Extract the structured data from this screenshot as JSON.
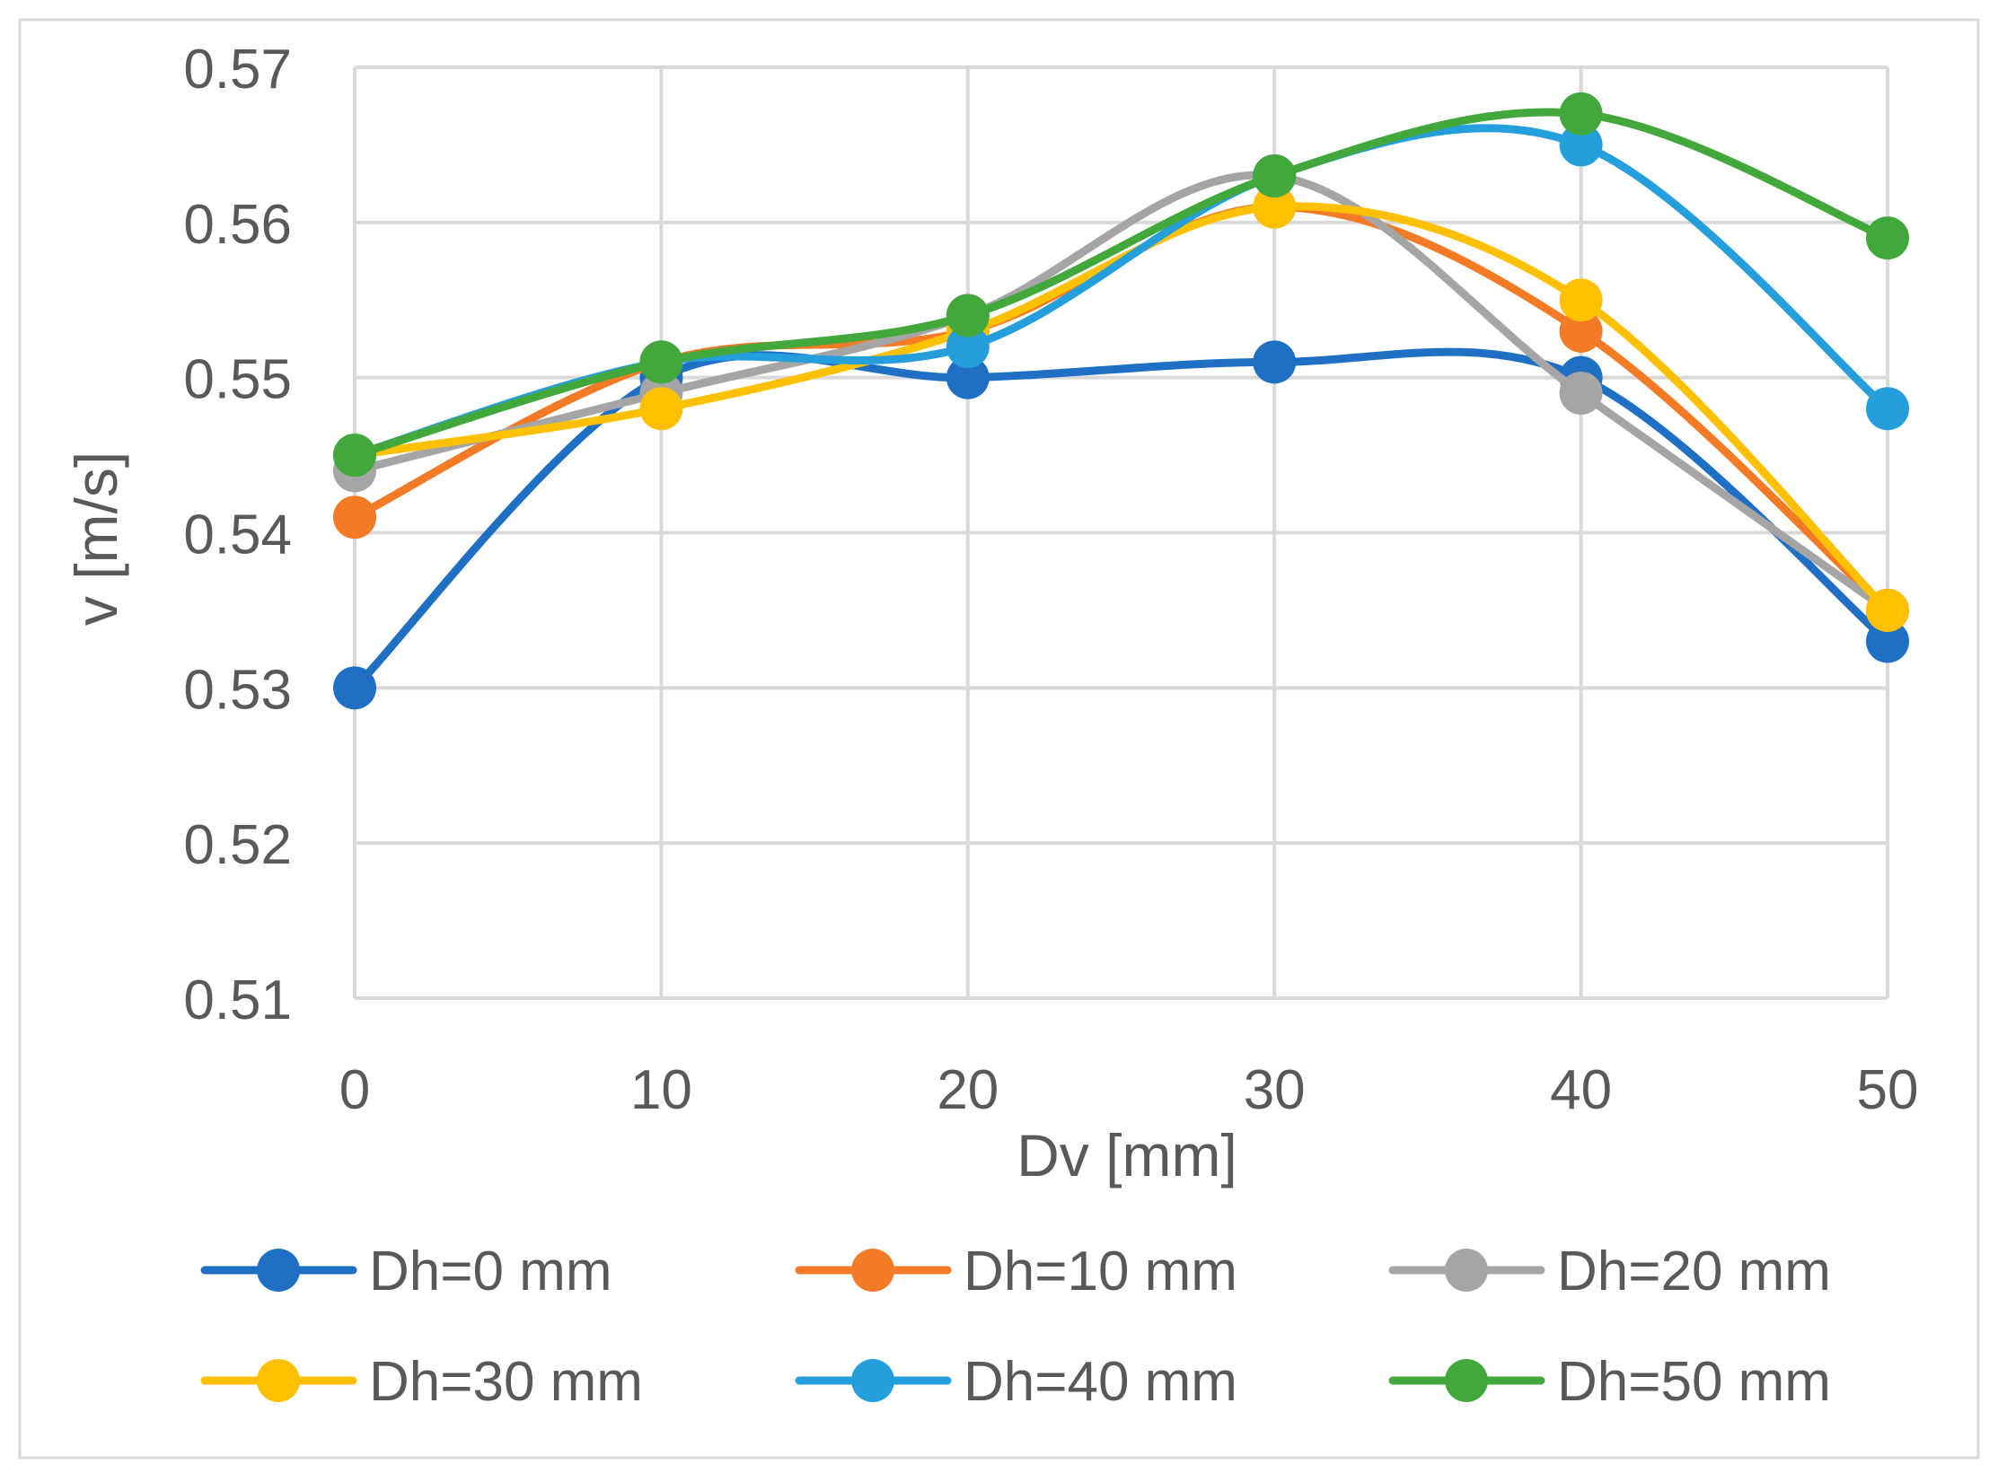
{
  "chart_data": {
    "type": "line",
    "title": "",
    "xlabel": "Dv [mm]",
    "ylabel": "v [m/s]",
    "x": [
      0,
      10,
      20,
      30,
      40,
      50
    ],
    "x_ticks": [
      "0",
      "10",
      "20",
      "30",
      "40",
      "50"
    ],
    "y_ticks": [
      "0.51",
      "0.52",
      "0.53",
      "0.54",
      "0.55",
      "0.56",
      "0.57"
    ],
    "xlim": [
      0,
      50
    ],
    "ylim": [
      0.51,
      0.57
    ],
    "grid": true,
    "smooth": true,
    "legend_position": "bottom",
    "series": [
      {
        "name": "Dh=0 mm",
        "color": "#1F6FC4",
        "values": [
          0.53,
          0.55,
          0.55,
          0.551,
          0.55,
          0.533
        ]
      },
      {
        "name": "Dh=10 mm",
        "color": "#F47B26",
        "values": [
          0.541,
          0.551,
          0.553,
          0.561,
          0.553,
          0.535
        ]
      },
      {
        "name": "Dh=20 mm",
        "color": "#A5A5A5",
        "values": [
          0.544,
          0.549,
          0.554,
          0.563,
          0.549,
          0.535
        ]
      },
      {
        "name": "Dh=30 mm",
        "color": "#FFC000",
        "values": [
          0.545,
          0.548,
          0.553,
          0.561,
          0.555,
          0.535
        ]
      },
      {
        "name": "Dh=40 mm",
        "color": "#259FDC",
        "values": [
          0.545,
          0.551,
          0.552,
          0.563,
          0.565,
          0.548
        ]
      },
      {
        "name": "Dh=50 mm",
        "color": "#43A83B",
        "values": [
          0.545,
          0.551,
          0.554,
          0.563,
          0.567,
          0.559
        ]
      }
    ]
  }
}
